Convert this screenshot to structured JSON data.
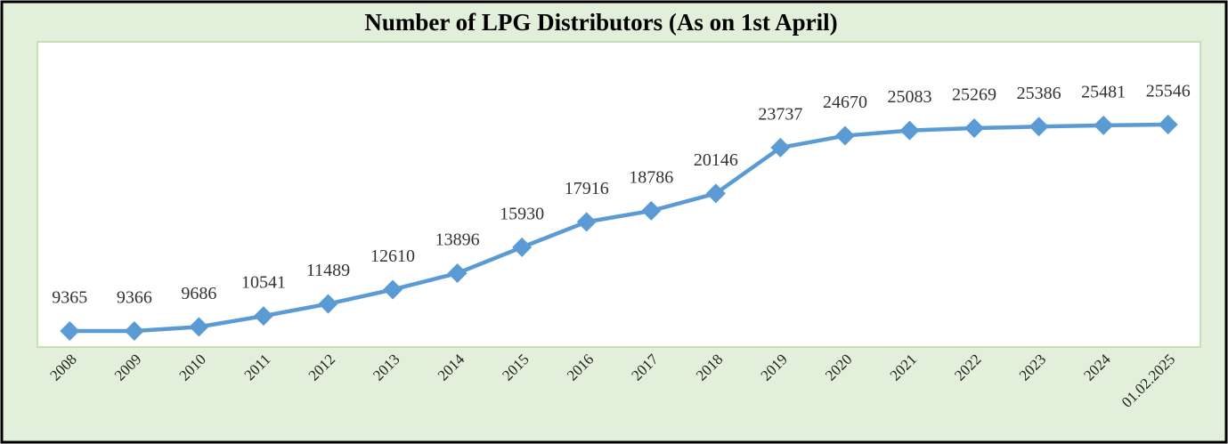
{
  "chart_data": {
    "type": "line",
    "title": "Number of LPG Distributors (As on 1st April)",
    "categories": [
      "2008",
      "2009",
      "2010",
      "2011",
      "2012",
      "2013",
      "2014",
      "2015",
      "2016",
      "2017",
      "2018",
      "2019",
      "2020",
      "2021",
      "2022",
      "2023",
      "2024",
      "01.02.2025"
    ],
    "values": [
      9365,
      9366,
      9686,
      10541,
      11489,
      12610,
      13896,
      15930,
      17916,
      18786,
      20146,
      23737,
      24670,
      25083,
      25269,
      25386,
      25481,
      25546
    ],
    "color": "#5b9bd5"
  }
}
